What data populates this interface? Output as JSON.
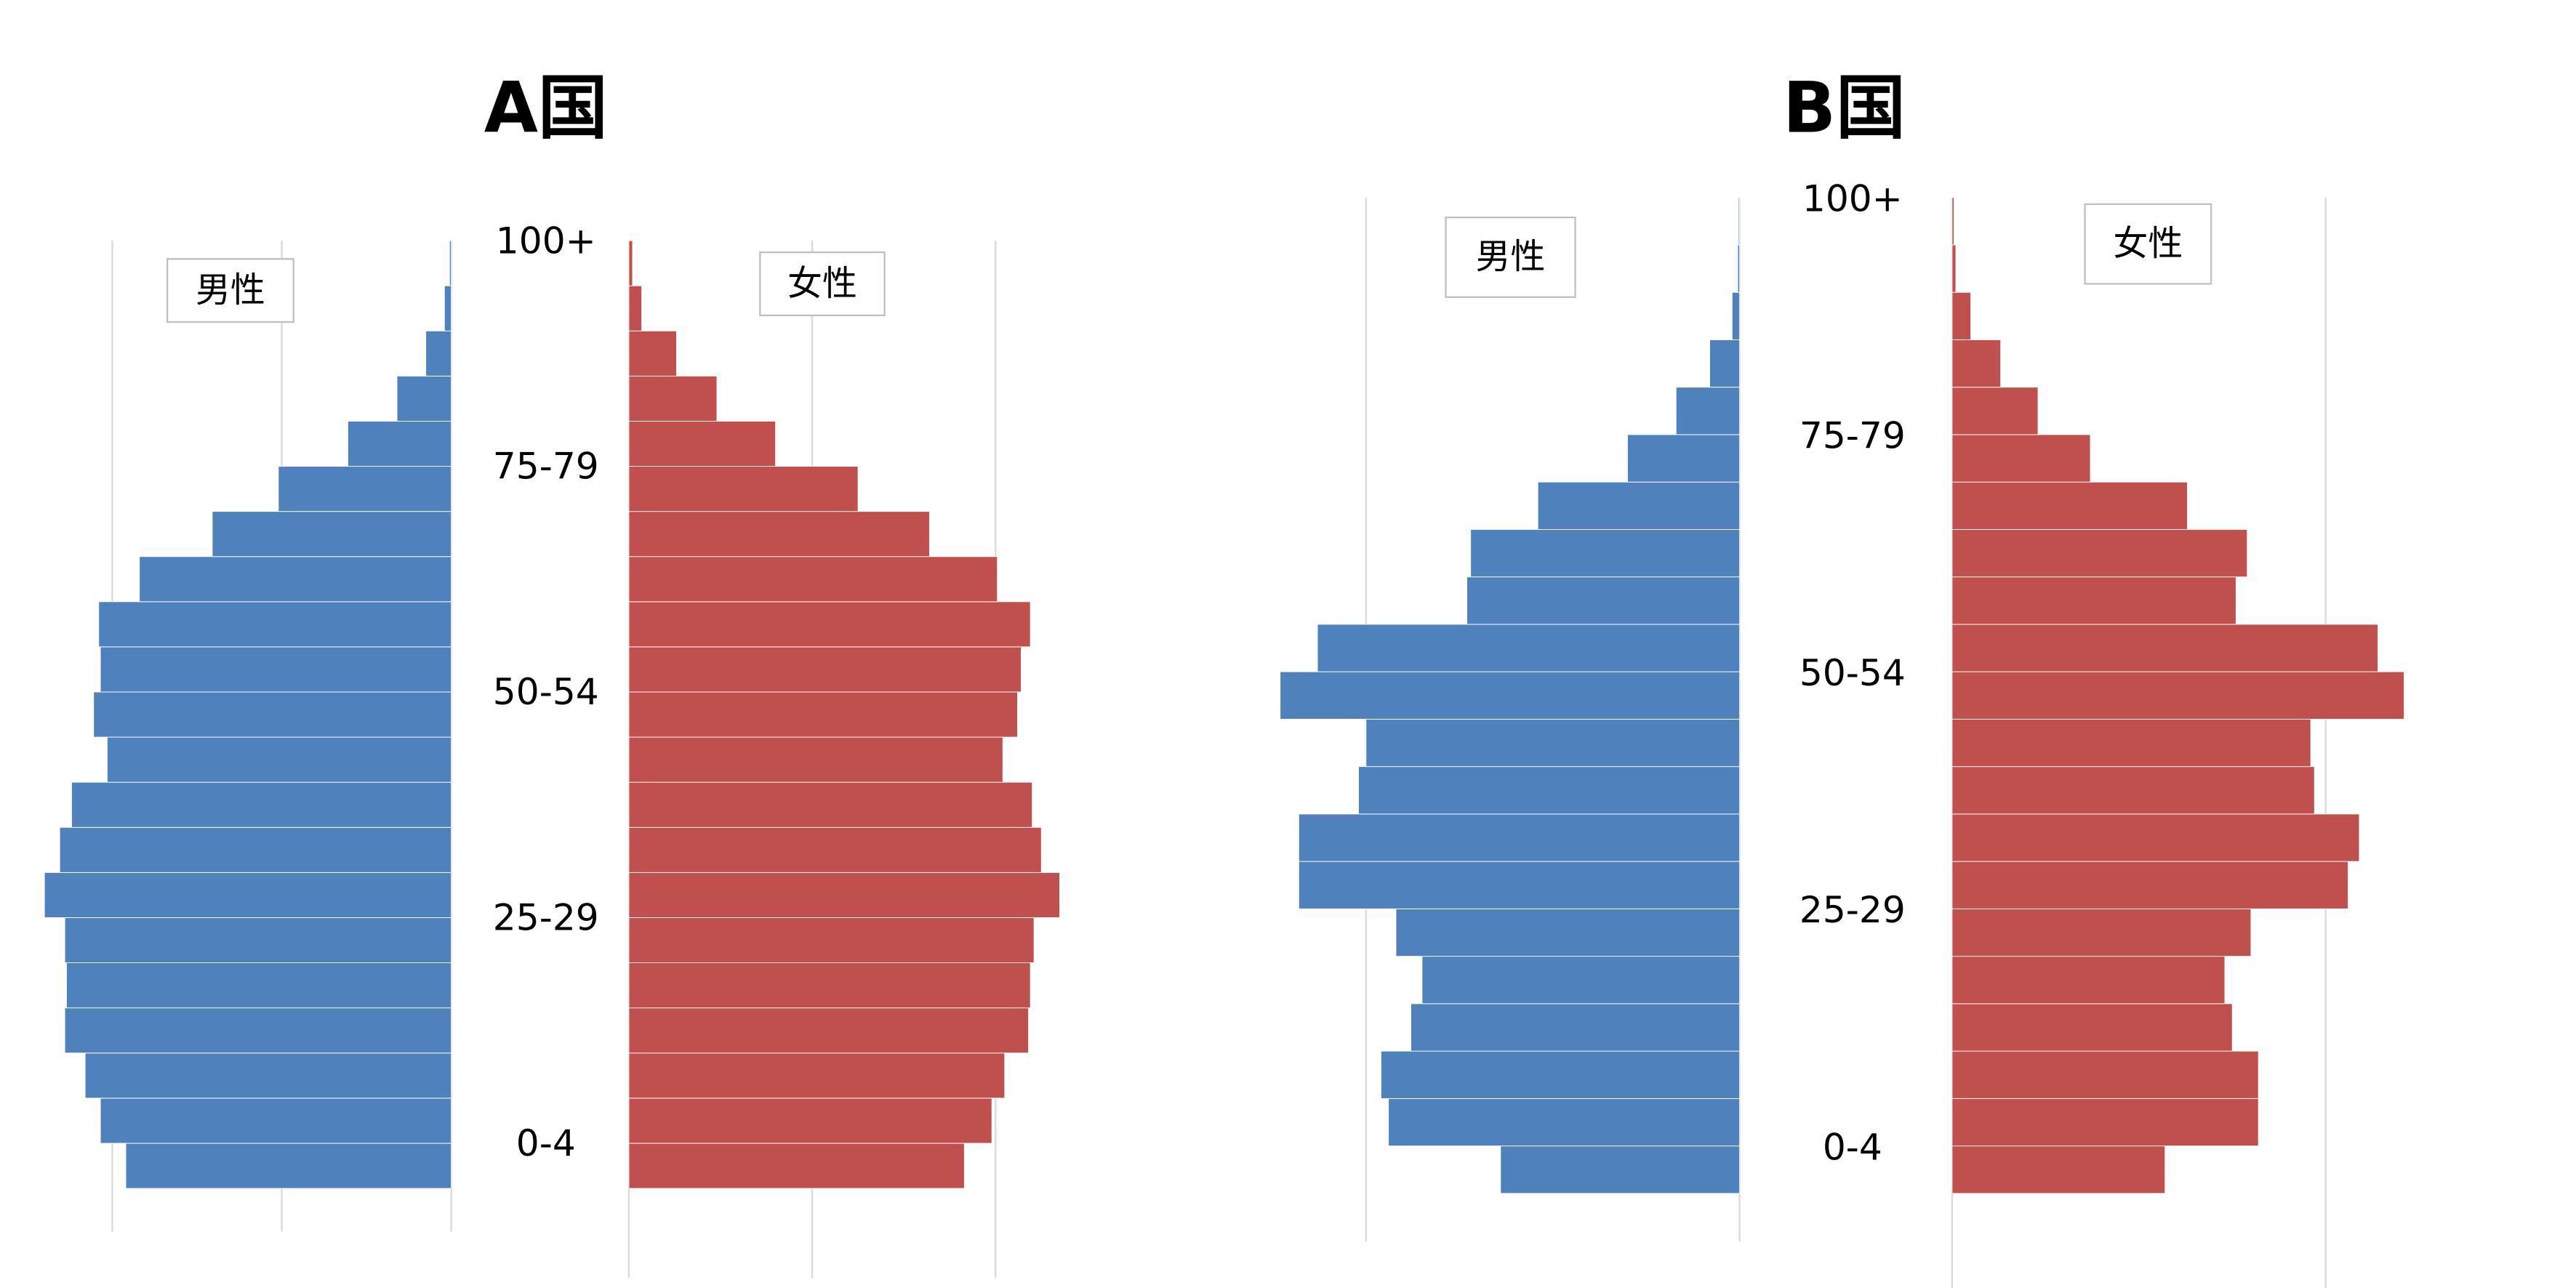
{
  "chart_data": [
    {
      "type": "pyramid",
      "title": "A国",
      "categories": [
        "0-4",
        null,
        null,
        null,
        null,
        "25-29",
        null,
        null,
        null,
        null,
        "50-54",
        null,
        null,
        null,
        null,
        "75-79",
        null,
        null,
        null,
        null,
        "100+"
      ],
      "series": [
        {
          "name": "男性",
          "color": "#4f81bd",
          "xlim": [
            0,
            2.4
          ],
          "xticks": [
            0,
            1,
            2
          ],
          "values": [
            1.92,
            2.07,
            2.16,
            2.28,
            2.27,
            2.28,
            2.4,
            2.31,
            2.24,
            2.03,
            2.11,
            2.07,
            2.08,
            1.84,
            1.41,
            1.02,
            0.61,
            0.32,
            0.15,
            0.04,
            0.01
          ]
        },
        {
          "name": "女性",
          "color": "#c0504d",
          "xlim": [
            0,
            2.4
          ],
          "xticks": [
            0,
            1,
            2
          ],
          "values": [
            1.83,
            1.98,
            2.05,
            2.18,
            2.19,
            2.21,
            2.35,
            2.25,
            2.2,
            2.04,
            2.12,
            2.14,
            2.19,
            2.01,
            1.64,
            1.25,
            0.8,
            0.48,
            0.26,
            0.07,
            0.02
          ]
        }
      ],
      "grid": true
    },
    {
      "type": "pyramid",
      "title": "B国",
      "categories": [
        "0-4",
        null,
        null,
        null,
        null,
        "25-29",
        null,
        null,
        null,
        null,
        "50-54",
        null,
        null,
        null,
        null,
        "75-79",
        null,
        null,
        null,
        null,
        "100+"
      ],
      "series": [
        {
          "name": "男性",
          "color": "#4f81bd",
          "xlim": [
            0,
            1.3
          ],
          "xticks": [
            0,
            1
          ],
          "values": [
            0.64,
            0.94,
            0.96,
            0.88,
            0.85,
            0.92,
            1.18,
            1.18,
            1.02,
            1.0,
            1.23,
            1.13,
            0.73,
            0.72,
            0.54,
            0.3,
            0.17,
            0.08,
            0.02,
            0.005,
            0.003
          ]
        },
        {
          "name": "女性",
          "color": "#c0504d",
          "xlim": [
            0,
            1.3
          ],
          "xticks": [
            0,
            1
          ],
          "values": [
            0.57,
            0.82,
            0.82,
            0.75,
            0.73,
            0.8,
            1.06,
            1.09,
            0.97,
            0.96,
            1.21,
            1.14,
            0.76,
            0.79,
            0.63,
            0.37,
            0.23,
            0.13,
            0.05,
            0.01,
            0.005
          ]
        }
      ],
      "grid": true
    }
  ]
}
